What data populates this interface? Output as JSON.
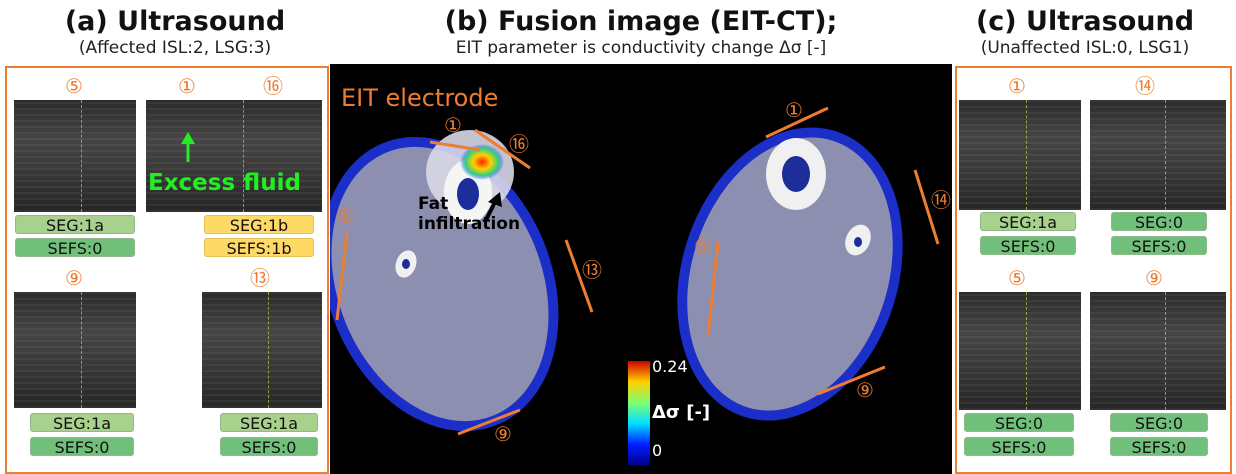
{
  "panel_a": {
    "title": "(a) Ultrasound",
    "subtitle": "(Affected ISL:2, LSG:3)",
    "images": [
      {
        "number": "⑤",
        "seg": "SEG:1a",
        "sefs": "SEFS:0"
      },
      {
        "number": "①",
        "number2": "⑯",
        "seg": "SEG:1b",
        "sefs": "SEFS:1b",
        "annotation": "Excess fluid"
      },
      {
        "number": "⑨",
        "seg": "SEG:1a",
        "sefs": "SEFS:0"
      },
      {
        "number": "⑬",
        "seg": "SEG:1a",
        "sefs": "SEFS:0"
      }
    ]
  },
  "panel_b": {
    "title": "(b) Fusion image (EIT-CT);",
    "subtitle": "EIT parameter is conductivity change Δσ [-]",
    "electrode_label": "EIT electrode",
    "left_numbers": [
      "①",
      "⑯",
      "⑤",
      "⑬",
      "⑨"
    ],
    "right_numbers": [
      "①",
      "⑭",
      "⑤",
      "⑨"
    ],
    "annotation": "Fat infiltration",
    "colorbar": {
      "max": "0.24",
      "min": "0",
      "label": "Δσ [-]"
    }
  },
  "panel_c": {
    "title": "(c) Ultrasound",
    "subtitle": "(Unaffected ISL:0, LSG1)",
    "images": [
      {
        "number": "①",
        "seg": "SEG:1a",
        "sefs": "SEFS:0"
      },
      {
        "number": "⑭",
        "seg": "SEG:0",
        "sefs": "SEFS:0"
      },
      {
        "number": "⑤",
        "seg": "SEG:0",
        "sefs": "SEFS:0"
      },
      {
        "number": "⑨",
        "seg": "SEG:0",
        "sefs": "SEFS:0"
      }
    ]
  },
  "colors": {
    "accent": "#ed7d31",
    "seg_light": "#a9d18e",
    "seg_dark": "#70bf7a",
    "affected": "#ffd966",
    "fluid": "#22ee22"
  }
}
